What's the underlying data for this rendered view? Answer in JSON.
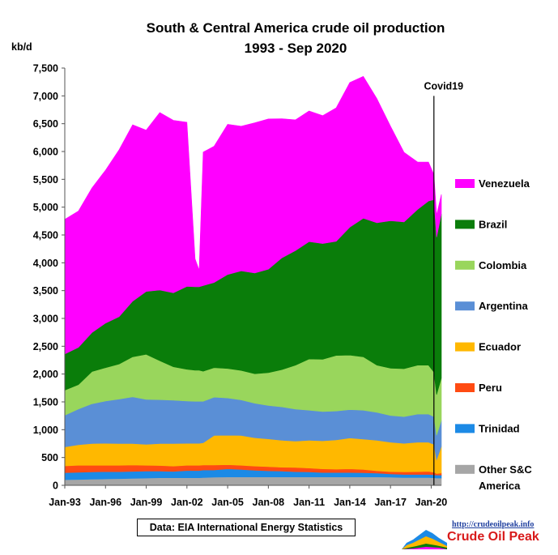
{
  "chart_data": {
    "type": "area",
    "stacked": true,
    "title": "South & Central America crude oil production",
    "subtitle": "1993 - Sep 2020",
    "ylabel": "kb/d",
    "ylim": [
      0,
      7500
    ],
    "yticks": [
      "0",
      "500",
      "1,000",
      "1,500",
      "2,000",
      "2,500",
      "3,000",
      "3,500",
      "4,000",
      "4,500",
      "5,000",
      "5,500",
      "6,000",
      "6,500",
      "7,000",
      "7,500"
    ],
    "xlim": [
      1993.0,
      2020.75
    ],
    "xticks": [
      {
        "label": "Jan-93",
        "x": 1993
      },
      {
        "label": "Jan-96",
        "x": 1996
      },
      {
        "label": "Jan-99",
        "x": 1999
      },
      {
        "label": "Jan-02",
        "x": 2002
      },
      {
        "label": "Jan-05",
        "x": 2005
      },
      {
        "label": "Jan-08",
        "x": 2008
      },
      {
        "label": "Jan-11",
        "x": 2011
      },
      {
        "label": "Jan-14",
        "x": 2014
      },
      {
        "label": "Jan-17",
        "x": 2017
      },
      {
        "label": "Jan-20",
        "x": 2020
      }
    ],
    "annotation": {
      "label": "Covid19",
      "x": 2020.2
    },
    "x": [
      1993,
      1994,
      1995,
      1996,
      1997,
      1998,
      1999,
      2000,
      2001,
      2002,
      2002.6,
      2002.9,
      2003.2,
      2004,
      2005,
      2006,
      2007,
      2008,
      2009,
      2010,
      2011,
      2012,
      2013,
      2014,
      2015,
      2016,
      2017,
      2018,
      2019,
      2019.8,
      2020.2,
      2020.4,
      2020.75
    ],
    "series": [
      {
        "name": "Other S&C America",
        "color": "#a6a6a6",
        "values": [
          100,
          105,
          110,
          115,
          120,
          125,
          130,
          135,
          135,
          135,
          135,
          135,
          140,
          145,
          150,
          150,
          150,
          150,
          150,
          150,
          150,
          150,
          150,
          150,
          150,
          150,
          145,
          140,
          140,
          140,
          135,
          130,
          130
        ]
      },
      {
        "name": "Trinidad",
        "color": "#1c8ae6",
        "values": [
          125,
          130,
          130,
          130,
          125,
          125,
          125,
          120,
          115,
          130,
          130,
          130,
          135,
          130,
          145,
          135,
          120,
          110,
          105,
          95,
          90,
          80,
          80,
          80,
          75,
          70,
          60,
          55,
          55,
          55,
          55,
          55,
          55
        ]
      },
      {
        "name": "Peru",
        "color": "#ff4b12",
        "values": [
          125,
          125,
          120,
          115,
          115,
          115,
          105,
          100,
          95,
          95,
          95,
          95,
          90,
          90,
          75,
          75,
          75,
          75,
          70,
          75,
          70,
          65,
          60,
          65,
          60,
          40,
          40,
          45,
          50,
          55,
          45,
          25,
          35
        ]
      },
      {
        "name": "Ecuador",
        "color": "#ffb800",
        "values": [
          340,
          370,
          390,
          395,
          390,
          385,
          375,
          395,
          405,
          395,
          395,
          395,
          400,
          530,
          530,
          535,
          510,
          500,
          485,
          475,
          500,
          505,
          525,
          555,
          545,
          550,
          530,
          515,
          530,
          525,
          500,
          250,
          480
        ]
      },
      {
        "name": "Argentina",
        "color": "#5a8fd6",
        "values": [
          570,
          640,
          715,
          760,
          800,
          840,
          810,
          790,
          780,
          760,
          755,
          755,
          745,
          690,
          670,
          640,
          620,
          600,
          600,
          575,
          540,
          525,
          520,
          510,
          520,
          500,
          480,
          480,
          505,
          505,
          500,
          440,
          470
        ]
      },
      {
        "name": "Colombia",
        "color": "#99d65c",
        "values": [
          450,
          440,
          580,
          600,
          630,
          720,
          810,
          700,
          600,
          570,
          560,
          560,
          540,
          530,
          530,
          530,
          530,
          590,
          670,
          790,
          920,
          940,
          1000,
          980,
          960,
          850,
          850,
          860,
          880,
          880,
          800,
          730,
          760
        ]
      },
      {
        "name": "Brazil",
        "color": "#0a7d0a",
        "values": [
          650,
          670,
          700,
          800,
          850,
          1000,
          1130,
          1270,
          1330,
          1490,
          1500,
          1500,
          1540,
          1530,
          1690,
          1790,
          1810,
          1860,
          2010,
          2060,
          2110,
          2080,
          2050,
          2300,
          2490,
          2560,
          2650,
          2640,
          2800,
          2950,
          3100,
          2830,
          2950
        ]
      },
      {
        "name": "Venezuela",
        "color": "#ff00ff",
        "values": [
          2420,
          2450,
          2600,
          2750,
          3000,
          3170,
          2900,
          3190,
          3100,
          2950,
          500,
          300,
          2400,
          2450,
          2700,
          2600,
          2700,
          2700,
          2500,
          2350,
          2350,
          2300,
          2400,
          2600,
          2550,
          2230,
          1700,
          1250,
          850,
          700,
          450,
          400,
          350
        ]
      }
    ],
    "legend_position": "right",
    "source": "Data: EIA International Energy Statistics"
  },
  "logo": {
    "url": "http://crudeoilpeak.info",
    "name": "Crude Oil Peak"
  }
}
